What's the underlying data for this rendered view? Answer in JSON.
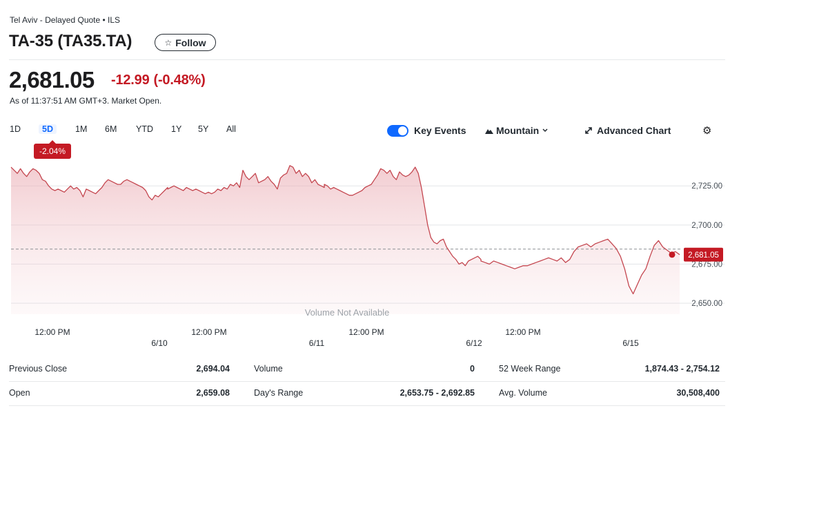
{
  "header": {
    "exchange": "Tel Aviv - Delayed Quote • ILS",
    "title": "TA-35 (TA35.TA)",
    "follow_label": "Follow",
    "price": "2,681.05",
    "change": "-12.99",
    "change_pct": "(-0.48%)",
    "as_of": "As of 11:37:51 AM GMT+3. Market Open."
  },
  "ranges": [
    "1D",
    "5D",
    "1M",
    "6M",
    "YTD",
    "1Y",
    "5Y",
    "All"
  ],
  "active_range": "5D",
  "range_badge": "-2.04%",
  "controls": {
    "key_events": "Key Events",
    "chart_type": "Mountain",
    "advanced_chart": "Advanced Chart"
  },
  "colors": {
    "accent": "#0f69ff",
    "negative": "#c41a24"
  },
  "icons": {
    "follow": "star-icon",
    "chart_type": "mountain-icon",
    "dropdown": "chevron-down-icon",
    "advanced": "expand-arrows-icon",
    "settings": "gear-icon"
  },
  "chart_data": {
    "type": "area",
    "volume_note": "Volume Not Available",
    "y_ticks": [
      2725.0,
      2700.0,
      2675.0,
      2650.0
    ],
    "y_tick_labels": [
      "2,725.00",
      "2,700.00",
      "2,675.00",
      "2,650.00"
    ],
    "ylim": [
      2643,
      2741
    ],
    "previous_close": 2684.6,
    "current_label": "2,681.05",
    "current_value": 2681.05,
    "x_time_labels": [
      "12:00 PM",
      "12:00 PM",
      "12:00 PM",
      "12:00 PM"
    ],
    "x_date_labels": [
      "6/10",
      "6/11",
      "6/12",
      "6/15"
    ],
    "days": [
      [
        2737,
        2735,
        2733,
        2736,
        2733,
        2731,
        2734,
        2736,
        2735,
        2733,
        2729,
        2728,
        2725,
        2723,
        2722,
        2723,
        2722,
        2721,
        2723,
        2725,
        2723,
        2724,
        2722,
        2718,
        2723,
        2722,
        2721,
        2720,
        2722,
        2724,
        2727,
        2729,
        2728,
        2727,
        2726,
        2726,
        2728,
        2729,
        2728,
        2727,
        2726,
        2725,
        2724,
        2722,
        2718,
        2716,
        2719,
        2718,
        2720,
        2722,
        2724
      ],
      [
        2723,
        2724,
        2725,
        2724,
        2723,
        2722,
        2724,
        2723,
        2722,
        2723,
        2722,
        2721,
        2720,
        2721,
        2720,
        2721,
        2723,
        2722,
        2724,
        2723,
        2726,
        2725,
        2727,
        2724,
        2735,
        2731,
        2729,
        2731,
        2733,
        2727,
        2728,
        2729,
        2731,
        2728,
        2726,
        2723,
        2730,
        2732,
        2733,
        2738,
        2737,
        2733,
        2735,
        2731,
        2733,
        2731,
        2727,
        2729,
        2726,
        2725,
        2724
      ],
      [
        2726,
        2725,
        2723,
        2724,
        2723,
        2722,
        2721,
        2720,
        2719,
        2719,
        2720,
        2721,
        2722,
        2724,
        2725,
        2726,
        2729,
        2732,
        2736,
        2735,
        2733,
        2735,
        2731,
        2729,
        2734,
        2732,
        2731,
        2732,
        2734,
        2737,
        2733,
        2724,
        2712,
        2700,
        2692,
        2689,
        2688,
        2690,
        2691,
        2686,
        2683,
        2680,
        2678,
        2675,
        2676,
        2674,
        2677,
        2678,
        2679,
        2680,
        2678
      ],
      [
        2677,
        2676,
        2675,
        2677,
        2676,
        2675,
        2674,
        2673,
        2672,
        2673,
        2674,
        2674,
        2675,
        2676,
        2677,
        2678,
        2679,
        2678,
        2677,
        2679,
        2676,
        2678,
        2683,
        2686,
        2687,
        2688,
        2686,
        2688,
        2689,
        2690,
        2691,
        2688,
        2685,
        2680,
        2672,
        2661,
        2656,
        2662,
        2668,
        2672,
        2680,
        2687,
        2690,
        2686,
        2684,
        2682,
        2683,
        2681.05
      ]
    ]
  },
  "stats": [
    [
      {
        "label": "Previous Close",
        "value": "2,694.04"
      },
      {
        "label": "Volume",
        "value": "0"
      },
      {
        "label": "52 Week Range",
        "value": "1,874.43 - 2,754.12"
      }
    ],
    [
      {
        "label": "Open",
        "value": "2,659.08"
      },
      {
        "label": "Day's Range",
        "value": "2,653.75 - 2,692.85"
      },
      {
        "label": "Avg. Volume",
        "value": "30,508,400"
      }
    ]
  ]
}
